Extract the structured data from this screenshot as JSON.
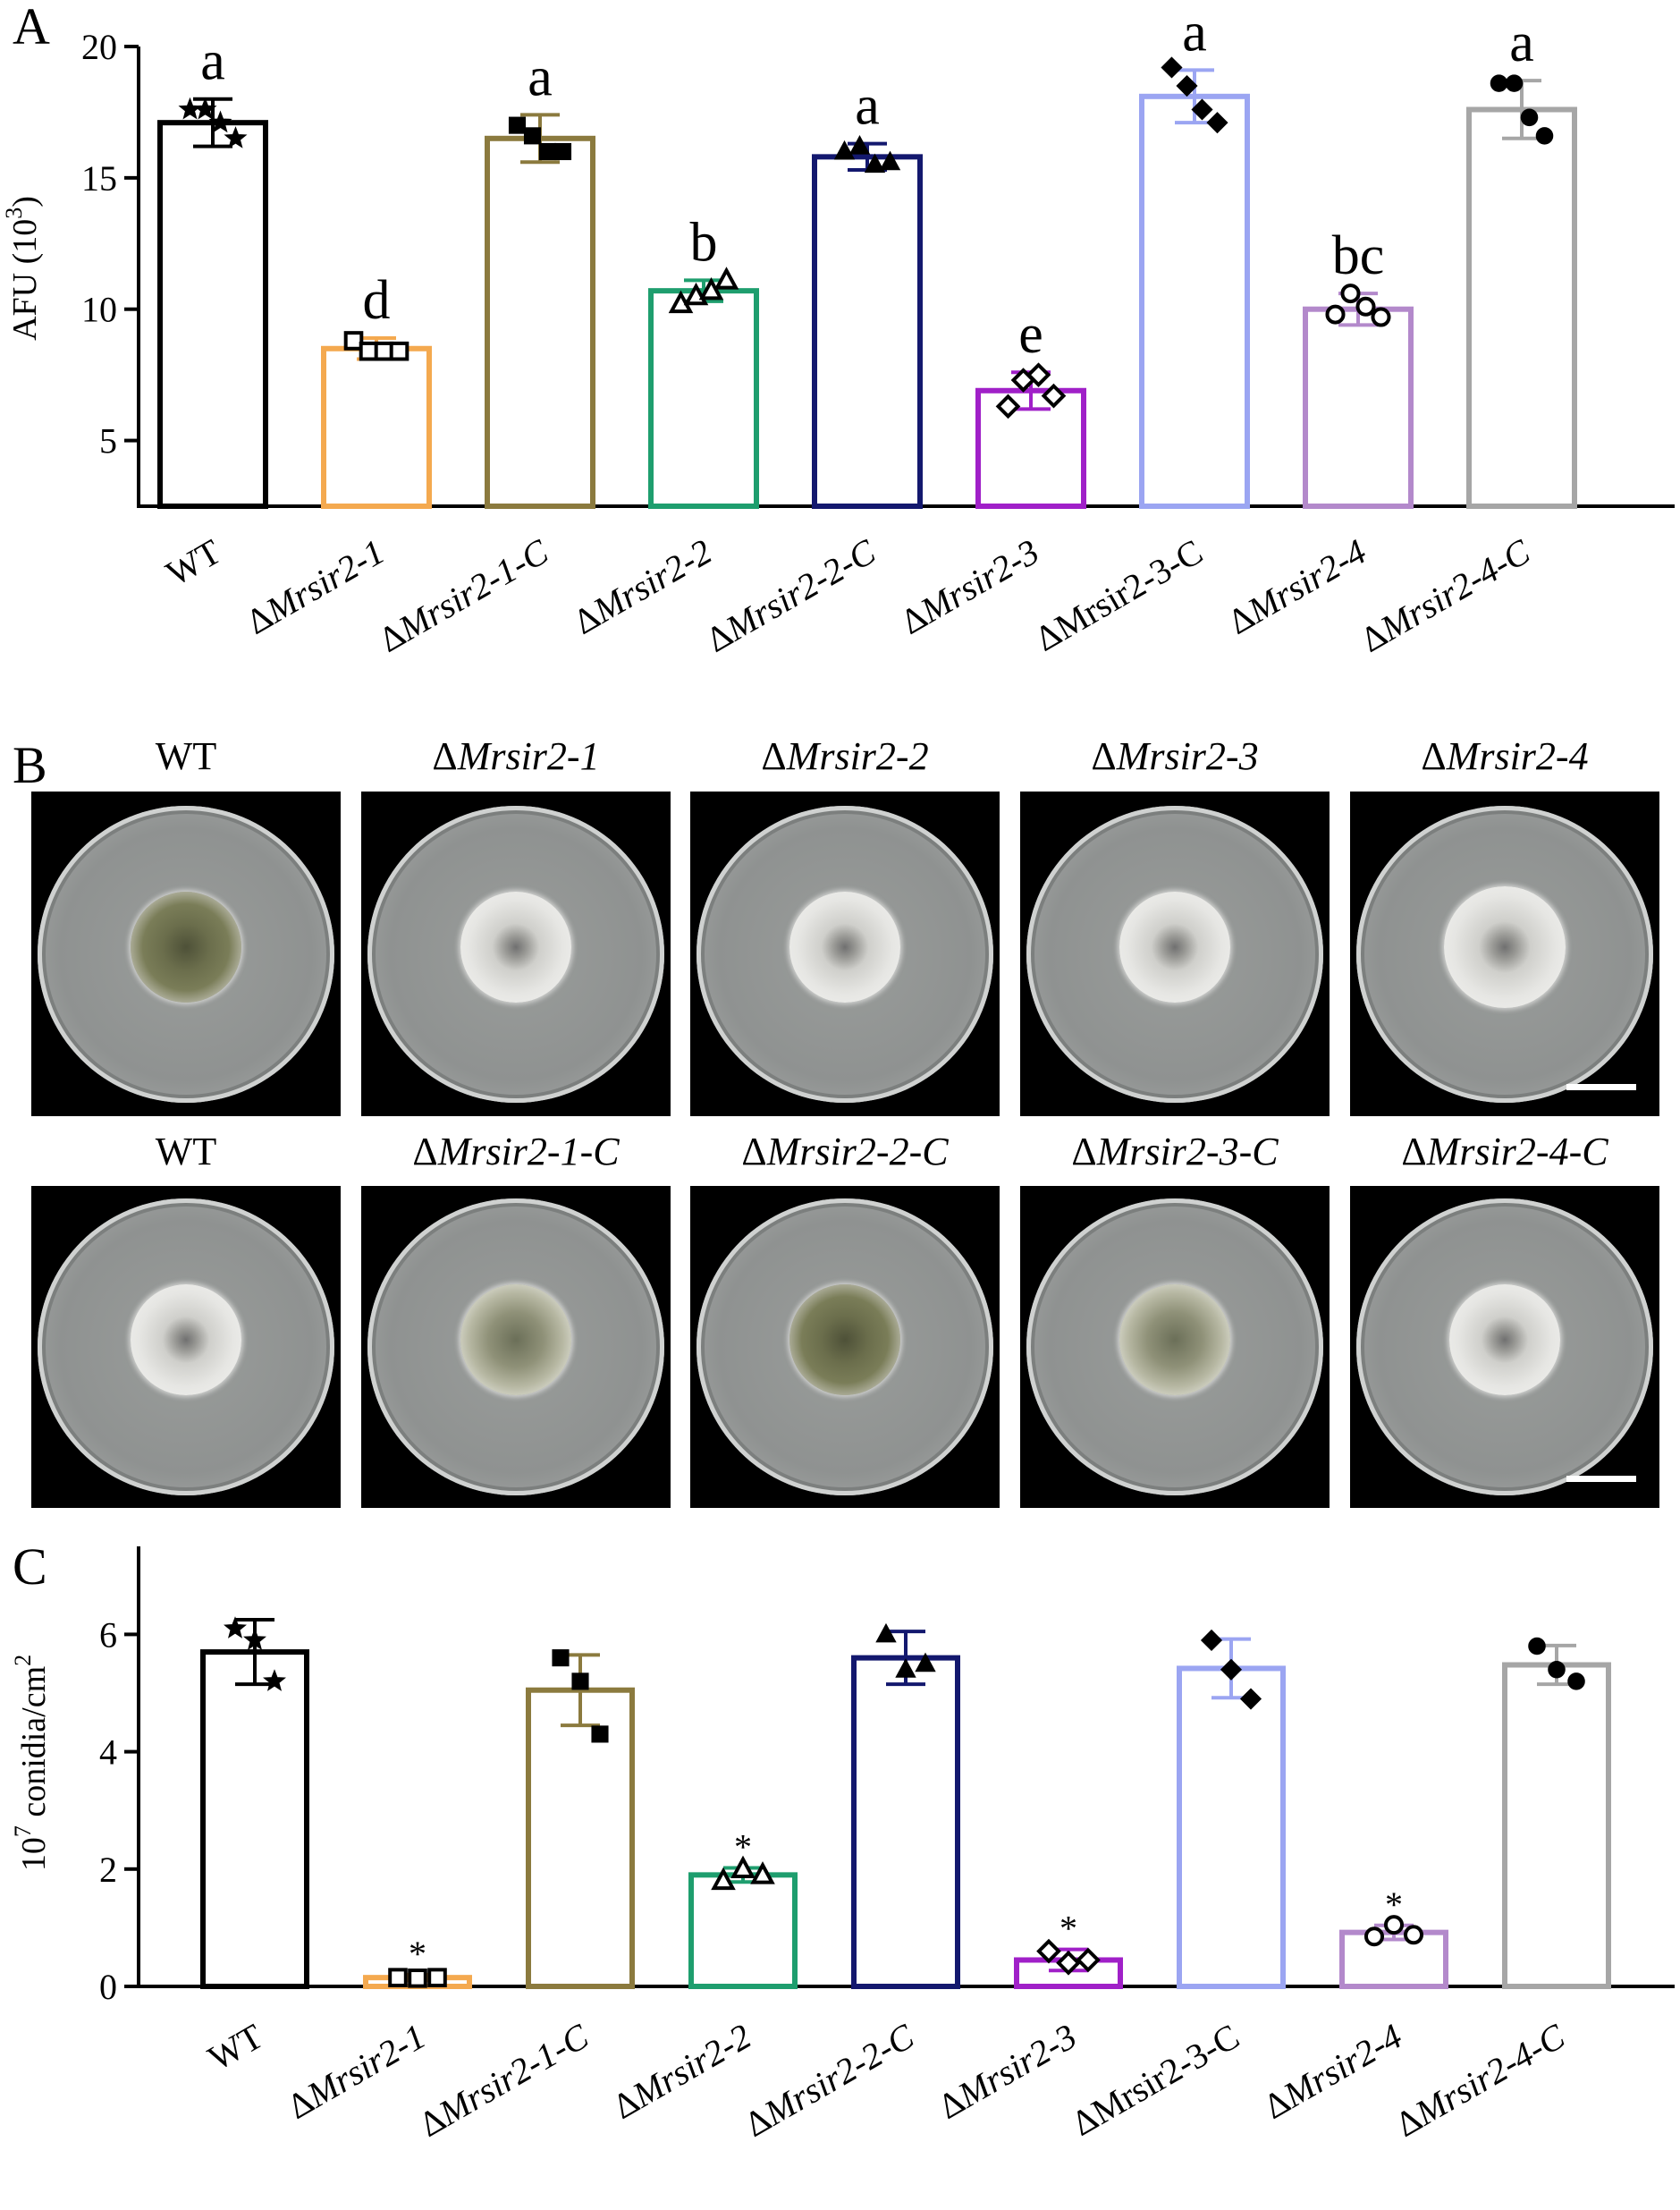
{
  "panels": {
    "A": "A",
    "B": "B",
    "C": "C"
  },
  "strains": [
    {
      "label": "WT",
      "prefix": "",
      "name": "WT",
      "italic": false,
      "color": "#000000",
      "marker": "star"
    },
    {
      "label": "ΔMrsir2-1",
      "prefix": "Δ",
      "name": "Mrsir2-1",
      "italic": true,
      "color": "#F4A94F",
      "marker": "square-open"
    },
    {
      "label": "ΔMrsir2-1-C",
      "prefix": "Δ",
      "name": "Mrsir2-1-C",
      "italic": true,
      "color": "#8B7A3E",
      "marker": "square"
    },
    {
      "label": "ΔMrsir2-2",
      "prefix": "Δ",
      "name": "Mrsir2-2",
      "italic": true,
      "color": "#1E9E6E",
      "marker": "triangle-open"
    },
    {
      "label": "ΔMrsir2-2-C",
      "prefix": "Δ",
      "name": "Mrsir2-2-C",
      "italic": true,
      "color": "#13186E",
      "marker": "triangle"
    },
    {
      "label": "ΔMrsir2-3",
      "prefix": "Δ",
      "name": "Mrsir2-3",
      "italic": true,
      "color": "#A020C8",
      "marker": "diamond-open"
    },
    {
      "label": "ΔMrsir2-3-C",
      "prefix": "Δ",
      "name": "Mrsir2-3-C",
      "italic": false,
      "color": "#9BA5F2",
      "marker": "diamond"
    },
    {
      "label": "ΔMrsir2-4",
      "prefix": "Δ",
      "name": "Mrsir2-4",
      "italic": true,
      "color": "#B389CB",
      "marker": "circle-open"
    },
    {
      "label": "ΔMrsir2-4-C",
      "prefix": "Δ",
      "name": "Mrsir2-4-C",
      "italic": true,
      "color": "#A6A6A6",
      "marker": "circle"
    }
  ],
  "chart_data": [
    {
      "panel": "A",
      "type": "bar",
      "ylabel_main": "AFU (10",
      "ylabel_sup": "3",
      "ylabel_end": ")",
      "ylim": [
        2.5,
        20
      ],
      "yticks": [
        5,
        10,
        15,
        20
      ],
      "values": [
        17.1,
        8.5,
        16.5,
        10.7,
        15.8,
        6.9,
        18.1,
        10.0,
        17.6
      ],
      "errors": [
        0.9,
        0.4,
        0.9,
        0.4,
        0.5,
        0.7,
        1.0,
        0.6,
        1.1
      ],
      "points": [
        [
          17.6,
          17.6,
          17.1,
          16.5
        ],
        [
          8.8,
          8.4,
          8.4,
          8.4
        ],
        [
          17.0,
          16.6,
          16.0,
          16.0
        ],
        [
          10.2,
          10.5,
          10.7,
          11.1
        ],
        [
          16.0,
          16.2,
          15.5,
          15.6
        ],
        [
          6.3,
          7.3,
          7.5,
          6.7
        ],
        [
          19.2,
          18.5,
          17.6,
          17.1
        ],
        [
          9.8,
          10.6,
          10.1,
          9.7
        ],
        [
          18.6,
          18.6,
          17.3,
          16.6
        ]
      ],
      "annotations": [
        "a",
        "d",
        "a",
        "b",
        "a",
        "e",
        "a",
        "bc",
        "a"
      ]
    },
    {
      "panel": "C",
      "type": "bar",
      "ylabel_pre": "10",
      "ylabel_sup": "7",
      "ylabel_main": " conidia/cm",
      "ylabel_sup2": "2",
      "ylim": [
        0,
        7.5
      ],
      "yticks": [
        0,
        2,
        4,
        6
      ],
      "values": [
        5.7,
        0.15,
        5.05,
        1.9,
        5.6,
        0.45,
        5.42,
        0.92,
        5.48
      ],
      "errors": [
        0.55,
        0.05,
        0.6,
        0.12,
        0.45,
        0.18,
        0.5,
        0.12,
        0.33
      ],
      "points": [
        [
          6.1,
          5.9,
          5.2
        ],
        [
          0.15,
          0.14,
          0.15
        ],
        [
          5.6,
          5.2,
          4.3
        ],
        [
          1.8,
          2.0,
          1.9
        ],
        [
          6.0,
          5.4,
          5.5
        ],
        [
          0.6,
          0.4,
          0.45
        ],
        [
          5.9,
          5.4,
          4.9
        ],
        [
          0.85,
          1.05,
          0.88
        ],
        [
          5.8,
          5.4,
          5.2
        ]
      ],
      "annotations": [
        "",
        "*",
        "",
        "*",
        "",
        "*",
        "",
        "*",
        ""
      ]
    }
  ],
  "plates": {
    "row1": [
      {
        "prefix": "",
        "name": "WT",
        "italic": false,
        "colony": "olive"
      },
      {
        "prefix": "Δ",
        "name": "Mrsir2-1",
        "italic": true,
        "colony": "white"
      },
      {
        "prefix": "Δ",
        "name": "Mrsir2-2",
        "italic": true,
        "colony": "white"
      },
      {
        "prefix": "Δ",
        "name": "Mrsir2-3",
        "italic": true,
        "colony": "white"
      },
      {
        "prefix": "Δ",
        "name": "Mrsir2-4",
        "italic": true,
        "colony": "white"
      }
    ],
    "row2": [
      {
        "prefix": "",
        "name": "WT",
        "italic": false,
        "colony": "white"
      },
      {
        "prefix": "Δ",
        "name": "Mrsir2-1-C",
        "italic": true,
        "colony": "olive-light"
      },
      {
        "prefix": "Δ",
        "name": "Mrsir2-2-C",
        "italic": true,
        "colony": "olive"
      },
      {
        "prefix": "Δ",
        "name": "Mrsir2-3-C",
        "italic": true,
        "colony": "olive-light"
      },
      {
        "prefix": "Δ",
        "name": "Mrsir2-4-C",
        "italic": true,
        "colony": "white"
      }
    ]
  }
}
